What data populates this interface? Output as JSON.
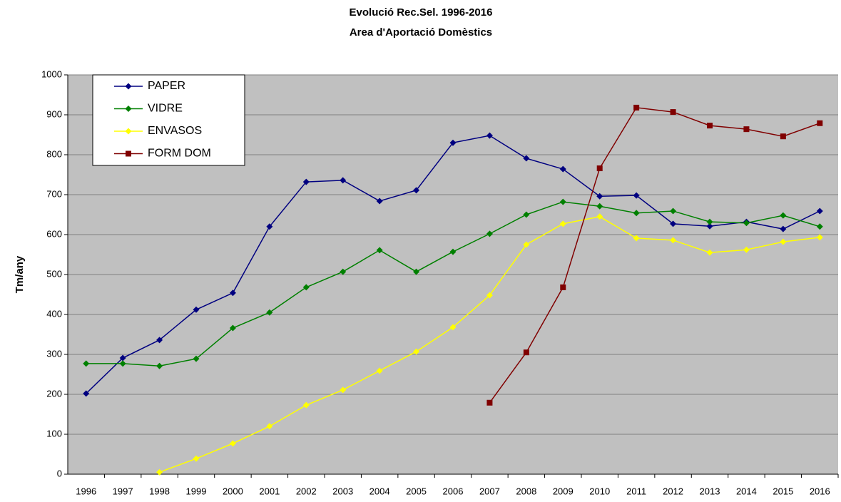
{
  "chart_data": {
    "type": "line",
    "title": "Evolució Rec.Sel. 1996-2016",
    "subtitle": "Area d'Aportació Domèstics",
    "y_label": "Tm/any",
    "categories": [
      "1996",
      "1997",
      "1998",
      "1999",
      "2000",
      "2001",
      "2002",
      "2003",
      "2004",
      "2005",
      "2006",
      "2007",
      "2008",
      "2009",
      "2010",
      "2011",
      "2012",
      "2013",
      "2014",
      "2015",
      "2016"
    ],
    "series": [
      {
        "name": "PAPER",
        "color": "#000080",
        "marker": "diamond",
        "values": [
          202,
          291,
          336,
          412,
          454,
          620,
          732,
          736,
          684,
          711,
          830,
          848,
          791,
          764,
          696,
          698,
          627,
          621,
          632,
          614,
          659
        ]
      },
      {
        "name": "VIDRE",
        "color": "#008000",
        "marker": "diamond",
        "values": [
          277,
          277,
          271,
          289,
          366,
          405,
          468,
          507,
          561,
          507,
          557,
          602,
          650,
          682,
          671,
          654,
          659,
          632,
          629,
          648,
          620
        ]
      },
      {
        "name": "ENVASOS",
        "color": "#ffff00",
        "marker": "diamond",
        "values": [
          null,
          null,
          5,
          39,
          77,
          120,
          173,
          211,
          259,
          307,
          368,
          448,
          575,
          627,
          645,
          591,
          586,
          555,
          562,
          582,
          593
        ]
      },
      {
        "name": "FORM DOM",
        "color": "#800000",
        "marker": "square",
        "values": [
          null,
          null,
          null,
          null,
          null,
          null,
          null,
          null,
          null,
          null,
          null,
          179,
          305,
          468,
          766,
          918,
          907,
          873,
          864,
          846,
          879
        ]
      }
    ],
    "ylim": [
      0,
      1000
    ],
    "yticks": [
      0,
      100,
      200,
      300,
      400,
      500,
      600,
      700,
      800,
      900,
      1000
    ],
    "grid": true,
    "legend": "top-left",
    "background": "#c0c0c0"
  }
}
